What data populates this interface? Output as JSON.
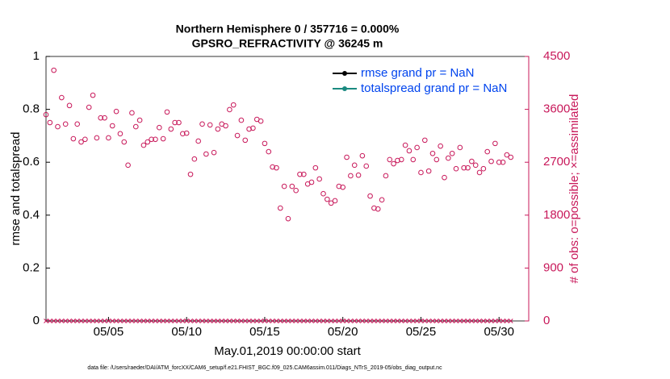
{
  "chart_data": {
    "type": "scatter",
    "title": "Northern Hemisphere 0 / 357716 = 0.000%",
    "subtitle": "GPSRO_REFRACTIVITY @ 36245 m",
    "ylabel": "rmse and totalspread",
    "y2label": "# of obs: o=possible; ×=assimilated",
    "xlabel": "May.01,2019 00:00:00 start",
    "footnote": "data file: /Users/raeder/DAI/ATM_forcXX/CAM6_setup/f.e21.FHIST_BGC.f09_025.CAM6assim.011/Diags_NTrS_2019-05/obs_diag_output.nc",
    "xlim": [
      1,
      31.9
    ],
    "xticks": [
      {
        "value": 5,
        "label": "05/05"
      },
      {
        "value": 10,
        "label": "05/10"
      },
      {
        "value": 15,
        "label": "05/15"
      },
      {
        "value": 20,
        "label": "05/20"
      },
      {
        "value": 25,
        "label": "05/25"
      },
      {
        "value": 30,
        "label": "05/30"
      }
    ],
    "ylim": [
      0,
      1
    ],
    "yticks": [
      0,
      0.2,
      0.4,
      0.6,
      0.8,
      1
    ],
    "y2lim": [
      0,
      4500
    ],
    "y2ticks": [
      0,
      900,
      1800,
      2700,
      3600,
      4500
    ],
    "legend_position": "upper right",
    "x": [
      1,
      1.25,
      1.5,
      1.75,
      2,
      2.25,
      2.5,
      2.75,
      3,
      3.25,
      3.5,
      3.75,
      4,
      4.25,
      4.5,
      4.75,
      5,
      5.25,
      5.5,
      5.75,
      6,
      6.25,
      6.5,
      6.75,
      7,
      7.25,
      7.5,
      7.75,
      8,
      8.25,
      8.5,
      8.75,
      9,
      9.25,
      9.5,
      9.75,
      10,
      10.25,
      10.5,
      10.75,
      11,
      11.25,
      11.5,
      11.75,
      12,
      12.25,
      12.5,
      12.75,
      13,
      13.25,
      13.5,
      13.75,
      14,
      14.25,
      14.5,
      14.75,
      15,
      15.25,
      15.5,
      15.75,
      16,
      16.25,
      16.5,
      16.75,
      17,
      17.25,
      17.5,
      17.75,
      18,
      18.25,
      18.5,
      18.75,
      19,
      19.25,
      19.5,
      19.75,
      20,
      20.25,
      20.5,
      20.75,
      21,
      21.25,
      21.5,
      21.75,
      22,
      22.25,
      22.5,
      22.75,
      23,
      23.25,
      23.5,
      23.75,
      24,
      24.25,
      24.5,
      24.75,
      25,
      25.25,
      25.5,
      25.75,
      26,
      26.25,
      26.5,
      26.75,
      27,
      27.25,
      27.5,
      27.75,
      28,
      28.25,
      28.5,
      28.75,
      29,
      29.25,
      29.5,
      29.75,
      30,
      30.25,
      30.5,
      30.75
    ],
    "series": [
      {
        "name": "rmse grand pr = NaN",
        "color": "#000000"
      },
      {
        "name": "totalspread grand pr = NaN",
        "color": "#1a8a80"
      },
      {
        "name": "possible",
        "color": "#c8185a",
        "axis": "y2",
        "values": [
          3510,
          3375,
          4265,
          3305,
          3800,
          3350,
          3665,
          3100,
          3350,
          3045,
          3090,
          3635,
          3840,
          3115,
          3455,
          3455,
          3115,
          3320,
          3565,
          3185,
          3045,
          2650,
          3540,
          3305,
          3415,
          2990,
          3045,
          3090,
          3090,
          3290,
          3100,
          3555,
          3265,
          3375,
          3375,
          3185,
          3195,
          2495,
          2755,
          3060,
          3350,
          2840,
          3335,
          2865,
          3265,
          3350,
          3320,
          3595,
          3675,
          3155,
          3415,
          3075,
          3265,
          3280,
          3430,
          3400,
          3020,
          2880,
          2620,
          2605,
          1920,
          2290,
          1740,
          2290,
          2220,
          2495,
          2495,
          2330,
          2360,
          2605,
          2415,
          2165,
          2070,
          2005,
          2045,
          2290,
          2275,
          2785,
          2470,
          2650,
          2480,
          2810,
          2635,
          2125,
          1920,
          1905,
          2060,
          2470,
          2745,
          2675,
          2730,
          2745,
          2990,
          2895,
          2745,
          2950,
          2525,
          3075,
          2550,
          2850,
          2745,
          2975,
          2440,
          2770,
          2850,
          2590,
          2950,
          2605,
          2605,
          2715,
          2650,
          2525,
          2590,
          2880,
          2715,
          3020,
          2700,
          2700,
          2825,
          2785
        ]
      },
      {
        "name": "assimilated",
        "color": "#c8185a",
        "axis": "y2",
        "values": [
          0,
          0,
          0,
          0,
          0,
          0,
          0,
          0,
          0,
          0,
          0,
          0,
          0,
          0,
          0,
          0,
          0,
          0,
          0,
          0,
          0,
          0,
          0,
          0,
          0,
          0,
          0,
          0,
          0,
          0,
          0,
          0,
          0,
          0,
          0,
          0,
          0,
          0,
          0,
          0,
          0,
          0,
          0,
          0,
          0,
          0,
          0,
          0,
          0,
          0,
          0,
          0,
          0,
          0,
          0,
          0,
          0,
          0,
          0,
          0,
          0,
          0,
          0,
          0,
          0,
          0,
          0,
          0,
          0,
          0,
          0,
          0,
          0,
          0,
          0,
          0,
          0,
          0,
          0,
          0,
          0,
          0,
          0,
          0,
          0,
          0,
          0,
          0,
          0,
          0,
          0,
          0,
          0,
          0,
          0,
          0,
          0,
          0,
          0,
          0,
          0,
          0,
          0,
          0,
          0,
          0,
          0,
          0,
          0,
          0,
          0,
          0,
          0,
          0,
          0,
          0,
          0,
          0,
          0,
          0
        ]
      }
    ]
  }
}
